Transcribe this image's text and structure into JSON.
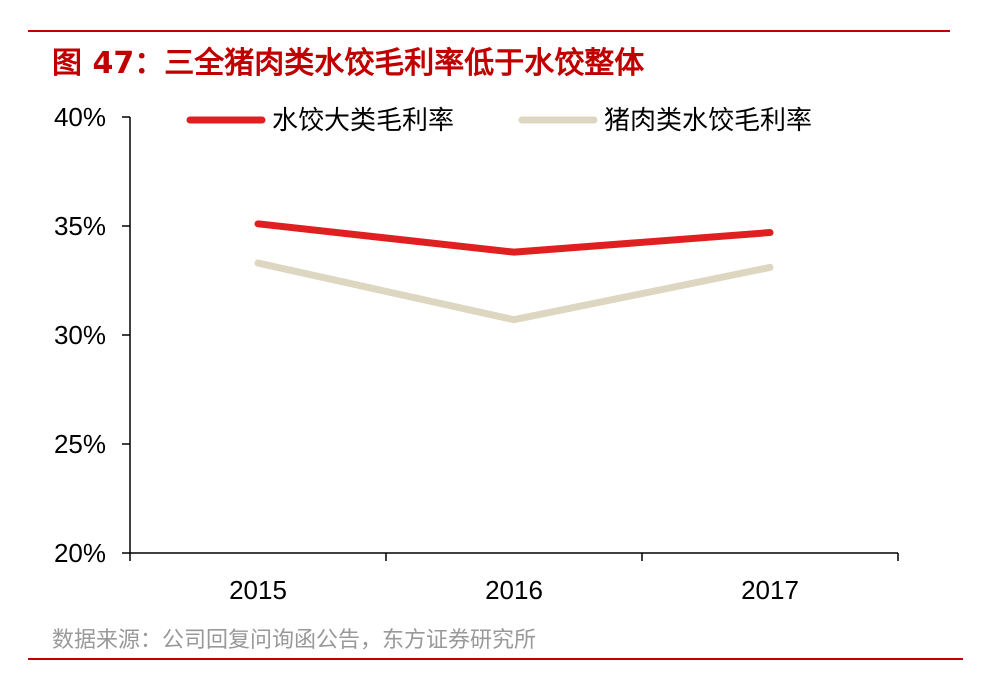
{
  "figure": {
    "title": "图 47：三全猪肉类水饺毛利率低于水饺整体",
    "source": "数据来源：公司回复问询函公告，东方证券研究所"
  },
  "colors": {
    "title_red": "#c00000",
    "series_1": "#e02020",
    "series_2": "#ddd6c0",
    "source_grey": "#999999"
  },
  "chart_data": {
    "type": "line",
    "categories": [
      "2015",
      "2016",
      "2017"
    ],
    "series": [
      {
        "name": "水饺大类毛利率",
        "values": [
          35.1,
          33.8,
          34.7
        ]
      },
      {
        "name": "猪肉类水饺毛利率",
        "values": [
          33.3,
          30.7,
          33.1
        ]
      }
    ],
    "ylim": [
      20,
      40
    ],
    "yticks": [
      20,
      25,
      30,
      35,
      40
    ],
    "ytick_labels": [
      "20%",
      "25%",
      "30%",
      "35%",
      "40%"
    ],
    "legend_position": "top",
    "grid": false
  }
}
